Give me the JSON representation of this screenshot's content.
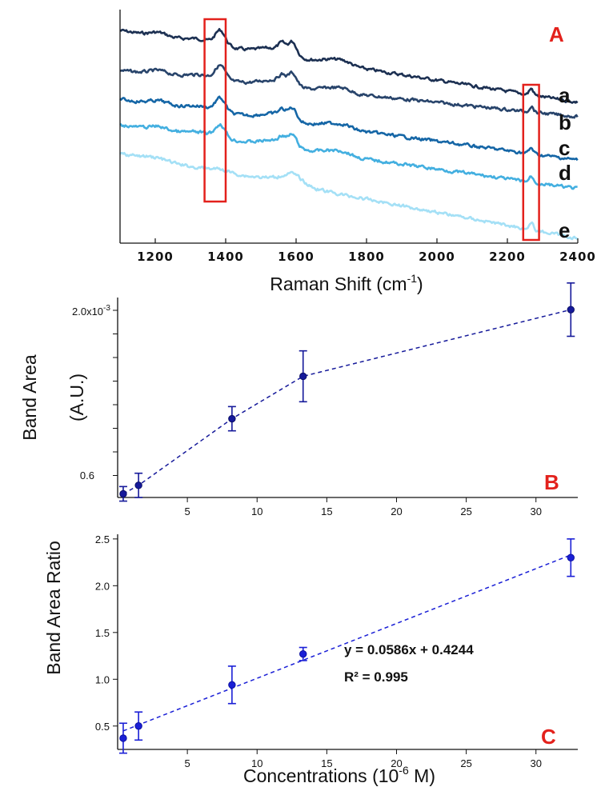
{
  "chart_data": [
    {
      "panel": "A",
      "type": "line",
      "xlabel": "Raman Shift (cm",
      "xlabel_sup": "-1",
      "xlabel_close": ")",
      "xlim": [
        1100,
        2400
      ],
      "xticks": [
        "1200",
        "1400",
        "1600",
        "1800",
        "2000",
        "2200",
        "2400"
      ],
      "panel_label": "A",
      "highlight_bands_cm1": [
        [
          1340,
          1400
        ],
        [
          2245,
          2290
        ]
      ],
      "series": [
        {
          "name": "a",
          "color": "#1c3052"
        },
        {
          "name": "b",
          "color": "#28446b"
        },
        {
          "name": "c",
          "color": "#1566a6"
        },
        {
          "name": "d",
          "color": "#43afe0"
        },
        {
          "name": "e",
          "color": "#a4e0f6"
        }
      ],
      "band_color": "#e3211c"
    },
    {
      "panel": "B",
      "type": "scatter",
      "ylabel_line1": "Band Area",
      "ylabel_line2": "(A.U.)",
      "ytick_top": "2.0x10",
      "ytick_top_sup": "-3",
      "ytick_bottom": "0.6",
      "ylim": [
        0.5,
        2.15
      ],
      "xlim": [
        0,
        33
      ],
      "xticks": [
        "5",
        "10",
        "15",
        "20",
        "25",
        "30"
      ],
      "panel_label": "B",
      "x": [
        0.4,
        1.5,
        8.2,
        13.3,
        32.5
      ],
      "y": [
        0.53,
        0.6,
        1.15,
        1.5,
        2.05
      ],
      "err": [
        0.06,
        0.1,
        0.1,
        0.21,
        0.22
      ],
      "color": "#15199a"
    },
    {
      "panel": "C",
      "type": "scatter",
      "ylabel": "Band Area Ratio",
      "xlabel": "Concentrations (10",
      "xlabel_sup": "-6",
      "xlabel_close": " M)",
      "ylim": [
        0.25,
        2.55
      ],
      "xlim": [
        0,
        33
      ],
      "yticks": [
        "0.5",
        "1.0",
        "1.5",
        "2.0",
        "2.5"
      ],
      "xticks": [
        "5",
        "10",
        "15",
        "20",
        "25",
        "30"
      ],
      "panel_label": "C",
      "x": [
        0.4,
        1.5,
        8.2,
        13.3,
        32.5
      ],
      "y": [
        0.37,
        0.5,
        0.94,
        1.27,
        2.3
      ],
      "err": [
        0.16,
        0.15,
        0.2,
        0.07,
        0.2
      ],
      "fit_text": "y = 0.0586x + 0.4244",
      "r2_text": "R² = 0.995",
      "color": "#1a1fd6"
    }
  ]
}
